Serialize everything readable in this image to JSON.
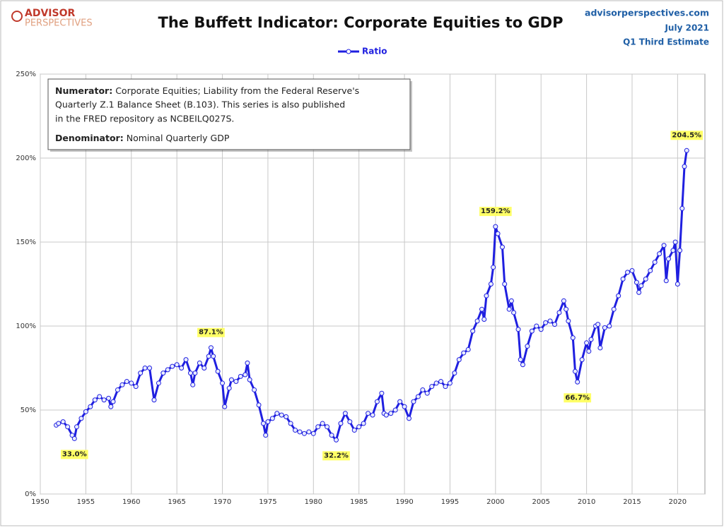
{
  "header": {
    "logo_top": "ADVISOR",
    "logo_bottom": "PERSPECTIVES",
    "source": "advisorperspectives.com",
    "date": "July 2021",
    "estimate": "Q1 Third Estimate"
  },
  "note": {
    "numerator_label": "Numerator:",
    "numerator_lines": [
      "Corporate Equities; Liability from the Federal Reserve's",
      "Quarterly Z.1 Balance Sheet (B.103). This series is also published",
      "in the FRED repository  as NCBEILQ027S."
    ],
    "denominator_label": "Denominator:",
    "denominator_text": "Nominal Quarterly GDP"
  },
  "chart_data": {
    "type": "line",
    "title": "The Buffett Indicator: Corporate Equities to GDP",
    "x": [
      1951.75,
      1952,
      1952.5,
      1953,
      1953.5,
      1953.75,
      1954,
      1954.5,
      1955,
      1955.5,
      1956,
      1956.5,
      1957,
      1957.5,
      1957.75,
      1958,
      1958.5,
      1959,
      1959.5,
      1960,
      1960.5,
      1961,
      1961.5,
      1962,
      1962.5,
      1963,
      1963.5,
      1964,
      1964.5,
      1965,
      1965.5,
      1966,
      1966.5,
      1966.75,
      1967,
      1967.5,
      1968,
      1968.5,
      1968.75,
      1969,
      1969.5,
      1970,
      1970.25,
      1970.75,
      1971,
      1971.5,
      1972,
      1972.5,
      1972.75,
      1973,
      1973.5,
      1974,
      1974.5,
      1974.75,
      1975,
      1975.5,
      1976,
      1976.5,
      1977,
      1977.5,
      1978,
      1978.5,
      1979,
      1979.5,
      1980,
      1980.5,
      1981,
      1981.5,
      1982,
      1982.5,
      1983,
      1983.5,
      1984,
      1984.5,
      1985,
      1985.5,
      1986,
      1986.5,
      1987,
      1987.5,
      1987.75,
      1988,
      1988.5,
      1989,
      1989.5,
      1990,
      1990.5,
      1991,
      1991.5,
      1992,
      1992.5,
      1993,
      1993.5,
      1994,
      1994.5,
      1995,
      1995.5,
      1996,
      1996.5,
      1997,
      1997.5,
      1998,
      1998.5,
      1998.75,
      1999,
      1999.5,
      1999.75,
      2000,
      2000.25,
      2000.75,
      2001,
      2001.5,
      2001.75,
      2002,
      2002.5,
      2002.75,
      2003,
      2003.5,
      2004,
      2004.5,
      2005,
      2005.5,
      2006,
      2006.5,
      2007,
      2007.5,
      2007.75,
      2008,
      2008.5,
      2008.75,
      2009,
      2009.5,
      2010,
      2010.25,
      2010.5,
      2011,
      2011.25,
      2011.5,
      2012,
      2012.5,
      2013,
      2013.5,
      2014,
      2014.5,
      2015,
      2015.5,
      2015.75,
      2016,
      2016.5,
      2017,
      2017.5,
      2018,
      2018.5,
      2018.75,
      2019,
      2019.5,
      2019.75,
      2020,
      2020.25,
      2020.5,
      2020.75,
      2021
    ],
    "series": [
      {
        "name": "Ratio",
        "color": "#1f1fe0",
        "values": [
          41,
          42,
          43,
          40,
          35,
          33.0,
          40,
          45,
          49,
          52,
          56,
          58,
          56,
          57,
          52,
          55,
          62,
          65,
          67,
          66,
          64,
          72,
          75,
          75,
          56,
          66,
          72,
          74,
          76,
          77,
          75,
          80,
          72,
          65,
          72,
          78,
          75,
          82,
          87.1,
          82,
          73,
          66,
          52,
          63,
          68,
          67,
          70,
          71,
          78,
          68,
          62,
          53,
          42,
          35,
          43,
          45,
          48,
          47,
          46,
          42,
          38,
          37,
          36,
          37,
          36,
          40,
          42,
          40,
          35,
          32.2,
          42,
          48,
          43,
          38,
          40,
          42,
          48,
          47,
          55,
          60,
          48,
          47,
          48,
          50,
          55,
          52,
          45,
          55,
          58,
          62,
          60,
          64,
          66,
          67,
          64,
          66,
          72,
          80,
          84,
          86,
          97,
          103,
          110,
          104,
          118,
          125,
          135,
          159.2,
          155,
          147,
          125,
          110,
          115,
          108,
          98,
          80,
          77,
          88,
          97,
          100,
          98,
          102,
          103,
          101,
          108,
          115,
          110,
          103,
          93,
          73,
          66.7,
          80,
          90,
          85,
          92,
          100,
          101,
          87,
          99,
          100,
          110,
          118,
          128,
          132,
          133,
          126,
          120,
          124,
          128,
          133,
          138,
          143,
          148,
          127,
          140,
          145,
          150,
          125,
          145,
          170,
          195,
          204.5
        ]
      }
    ],
    "annotations": [
      {
        "x": 1953.75,
        "value": 33.0,
        "label": "33.0%"
      },
      {
        "x": 1968.75,
        "value": 87.1,
        "label": "87.1%"
      },
      {
        "x": 1982.5,
        "value": 32.2,
        "label": "32.2%"
      },
      {
        "x": 2000,
        "value": 159.2,
        "label": "159.2%"
      },
      {
        "x": 2009,
        "value": 66.7,
        "label": "66.7%"
      },
      {
        "x": 2021,
        "value": 204.5,
        "label": "204.5%"
      }
    ],
    "xlim": [
      1950,
      2023
    ],
    "xticks": [
      1950,
      1955,
      1960,
      1965,
      1970,
      1975,
      1980,
      1985,
      1990,
      1995,
      2000,
      2005,
      2010,
      2015,
      2020
    ],
    "ylim": [
      0,
      250
    ],
    "yticks": [
      {
        "value": 0,
        "label": "0%"
      },
      {
        "value": 50,
        "label": "50%"
      },
      {
        "value": 100,
        "label": "100%"
      },
      {
        "value": 150,
        "label": "150%"
      },
      {
        "value": 200,
        "label": "200%"
      },
      {
        "value": 250,
        "label": "250%"
      }
    ],
    "grid": true
  }
}
